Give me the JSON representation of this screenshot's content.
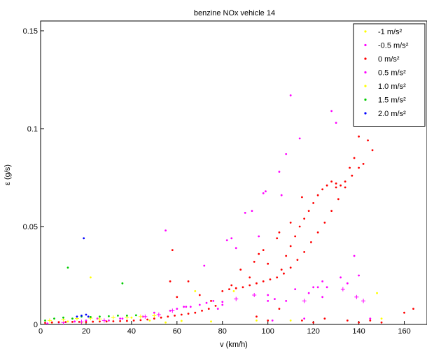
{
  "chart_data": {
    "type": "scatter",
    "title": "benzine NOx vehicle 14",
    "xlabel": "v (km/h)",
    "ylabel": "ε (g/s)",
    "xlim": [
      0,
      170
    ],
    "ylim": [
      0,
      0.155
    ],
    "xticks": [
      0,
      20,
      40,
      60,
      80,
      100,
      120,
      140,
      160
    ],
    "yticks": [
      0,
      0.05,
      0.1,
      0.15
    ],
    "ytick_labels": [
      "0",
      "0.05",
      "0.1",
      "0.15"
    ],
    "grid": false,
    "legend_position": "top-right",
    "series": [
      {
        "name": "-1 m/s²",
        "color": "#ffff00",
        "points": [
          [
            5,
            0.001
          ],
          [
            12,
            0.0015
          ],
          [
            18,
            0.001
          ],
          [
            22,
            0.024
          ],
          [
            30,
            0.002
          ],
          [
            40,
            0.0035
          ],
          [
            48,
            0.002
          ],
          [
            55,
            0.001
          ],
          [
            62,
            0.0018
          ],
          [
            68,
            0.017
          ],
          [
            75,
            0.0015
          ],
          [
            85,
            0.017
          ],
          [
            95,
            0.002
          ],
          [
            110,
            0.002
          ],
          [
            148,
            0.016
          ],
          [
            150,
            0.003
          ]
        ]
      },
      {
        "name": "-0.5 m/s²",
        "color": "#ff00ff",
        "points": [
          [
            3,
            0.0005
          ],
          [
            8,
            0.001
          ],
          [
            15,
            0.0015
          ],
          [
            20,
            0.002
          ],
          [
            25,
            0.003
          ],
          [
            30,
            0.002
          ],
          [
            35,
            0.003
          ],
          [
            45,
            0.004
          ],
          [
            50,
            0.006
          ],
          [
            55,
            0.048
          ],
          [
            57,
            0.007
          ],
          [
            60,
            0.008
          ],
          [
            63,
            0.009
          ],
          [
            66,
            0.009
          ],
          [
            70,
            0.01
          ],
          [
            73,
            0.011
          ],
          [
            76,
            0.012
          ],
          [
            78,
            0.008
          ],
          [
            80,
            0.01
          ],
          [
            82,
            0.043
          ],
          [
            84,
            0.044
          ],
          [
            86,
            0.039
          ],
          [
            90,
            0.057
          ],
          [
            93,
            0.058
          ],
          [
            96,
            0.045
          ],
          [
            98,
            0.067
          ],
          [
            99,
            0.068
          ],
          [
            100,
            0.015
          ],
          [
            102,
            0.002
          ],
          [
            103,
            0.013
          ],
          [
            105,
            0.078
          ],
          [
            106,
            0.066
          ],
          [
            108,
            0.087
          ],
          [
            110,
            0.117
          ],
          [
            112,
            0.018
          ],
          [
            114,
            0.095
          ],
          [
            116,
            0.003
          ],
          [
            118,
            0.016
          ],
          [
            120,
            0.019
          ],
          [
            122,
            0.019
          ],
          [
            124,
            0.022
          ],
          [
            126,
            0.019
          ],
          [
            128,
            0.109
          ],
          [
            130,
            0.103
          ],
          [
            132,
            0.024
          ],
          [
            135,
            0.021
          ],
          [
            138,
            0.035
          ],
          [
            140,
            0.025
          ],
          [
            145,
            0.003
          ]
        ]
      },
      {
        "name": "0 m/s²",
        "color": "#ff0000",
        "points": [
          [
            2,
            0.0008
          ],
          [
            5,
            0.001
          ],
          [
            8,
            0.0012
          ],
          [
            11,
            0.0012
          ],
          [
            14,
            0.0013
          ],
          [
            17,
            0.0013
          ],
          [
            20,
            0.0012
          ],
          [
            23,
            0.0014
          ],
          [
            26,
            0.0015
          ],
          [
            29,
            0.0015
          ],
          [
            32,
            0.0016
          ],
          [
            35,
            0.0017
          ],
          [
            38,
            0.0018
          ],
          [
            41,
            0.002
          ],
          [
            44,
            0.0022
          ],
          [
            47,
            0.0025
          ],
          [
            50,
            0.003
          ],
          [
            53,
            0.0035
          ],
          [
            56,
            0.004
          ],
          [
            59,
            0.0045
          ],
          [
            62,
            0.005
          ],
          [
            65,
            0.0055
          ],
          [
            68,
            0.006
          ],
          [
            71,
            0.007
          ],
          [
            74,
            0.008
          ],
          [
            77,
            0.0095
          ],
          [
            80,
            0.017
          ],
          [
            83,
            0.018
          ],
          [
            86,
            0.0185
          ],
          [
            89,
            0.019
          ],
          [
            92,
            0.02
          ],
          [
            95,
            0.021
          ],
          [
            98,
            0.022
          ],
          [
            101,
            0.023
          ],
          [
            104,
            0.024
          ],
          [
            107,
            0.026
          ],
          [
            110,
            0.029
          ],
          [
            113,
            0.033
          ],
          [
            116,
            0.037
          ],
          [
            119,
            0.042
          ],
          [
            122,
            0.047
          ],
          [
            125,
            0.052
          ],
          [
            128,
            0.058
          ],
          [
            131,
            0.064
          ],
          [
            134,
            0.07
          ],
          [
            137,
            0.076
          ],
          [
            140,
            0.08
          ],
          [
            142,
            0.082
          ],
          [
            108,
            0.035
          ],
          [
            110,
            0.04
          ],
          [
            112,
            0.045
          ],
          [
            114,
            0.05
          ],
          [
            116,
            0.054
          ],
          [
            118,
            0.058
          ],
          [
            120,
            0.062
          ],
          [
            122,
            0.066
          ],
          [
            124,
            0.069
          ],
          [
            126,
            0.071
          ],
          [
            128,
            0.073
          ],
          [
            130,
            0.072
          ],
          [
            104,
            0.044
          ],
          [
            106,
            0.028
          ],
          [
            100,
            0.031
          ],
          [
            96,
            0.036
          ],
          [
            92,
            0.024
          ],
          [
            88,
            0.028
          ],
          [
            84,
            0.02
          ],
          [
            70,
            0.015
          ],
          [
            65,
            0.022
          ],
          [
            60,
            0.014
          ],
          [
            57,
            0.022
          ],
          [
            58,
            0.038
          ],
          [
            75,
            0.012
          ],
          [
            95,
            0.004
          ],
          [
            100,
            0.002
          ],
          [
            105,
            0.008
          ],
          [
            115,
            0.002
          ],
          [
            120,
            0.001
          ],
          [
            125,
            0.003
          ],
          [
            135,
            0.002
          ],
          [
            140,
            0.001
          ],
          [
            145,
            0.002
          ],
          [
            150,
            0.001
          ],
          [
            160,
            0.006
          ],
          [
            164,
            0.008
          ],
          [
            144,
            0.094
          ],
          [
            146,
            0.089
          ],
          [
            140,
            0.096
          ],
          [
            138,
            0.085
          ],
          [
            136,
            0.08
          ],
          [
            134,
            0.073
          ],
          [
            132,
            0.071
          ],
          [
            130,
            0.07
          ],
          [
            110,
            0.052
          ],
          [
            115,
            0.065
          ],
          [
            105,
            0.047
          ],
          [
            98,
            0.038
          ],
          [
            94,
            0.032
          ]
        ]
      },
      {
        "name": "0.5 m/s²",
        "color": "#ff00ff",
        "points": [
          [
            10,
            0.001
          ],
          [
            18,
            0.0013
          ],
          [
            28,
            0.002
          ],
          [
            36,
            0.003
          ],
          [
            46,
            0.004
          ],
          [
            52,
            0.005
          ],
          [
            58,
            0.007
          ],
          [
            64,
            0.009
          ],
          [
            72,
            0.03
          ],
          [
            80,
            0.0115
          ],
          [
            86,
            0.013
          ],
          [
            94,
            0.015
          ],
          [
            100,
            0.012
          ],
          [
            108,
            0.012
          ],
          [
            116,
            0.012
          ],
          [
            124,
            0.014
          ],
          [
            133,
            0.018
          ],
          [
            139,
            0.014
          ],
          [
            142,
            0.012
          ]
        ]
      },
      {
        "name": "1.0 m/s²",
        "color": "#ffff00",
        "points": [
          [
            4,
            0.002
          ],
          [
            10,
            0.0025
          ],
          [
            16,
            0.003
          ],
          [
            22,
            0.0032
          ],
          [
            26,
            0.0028
          ],
          [
            32,
            0.0035
          ],
          [
            38,
            0.0036
          ],
          [
            44,
            0.004
          ],
          [
            50,
            0.0045
          ]
        ]
      },
      {
        "name": "1.5 m/s²",
        "color": "#00cc00",
        "points": [
          [
            2,
            0.002
          ],
          [
            6,
            0.003
          ],
          [
            10,
            0.0035
          ],
          [
            12,
            0.029
          ],
          [
            14,
            0.003
          ],
          [
            18,
            0.004
          ],
          [
            22,
            0.0038
          ],
          [
            26,
            0.004
          ],
          [
            30,
            0.0042
          ],
          [
            34,
            0.0045
          ],
          [
            36,
            0.021
          ],
          [
            38,
            0.0045
          ],
          [
            42,
            0.0047
          ]
        ]
      },
      {
        "name": "2.0 m/s²",
        "color": "#0000ff",
        "points": [
          [
            16,
            0.004
          ],
          [
            18,
            0.0045
          ],
          [
            19,
            0.044
          ],
          [
            20,
            0.005
          ],
          [
            21,
            0.004
          ]
        ]
      }
    ]
  }
}
